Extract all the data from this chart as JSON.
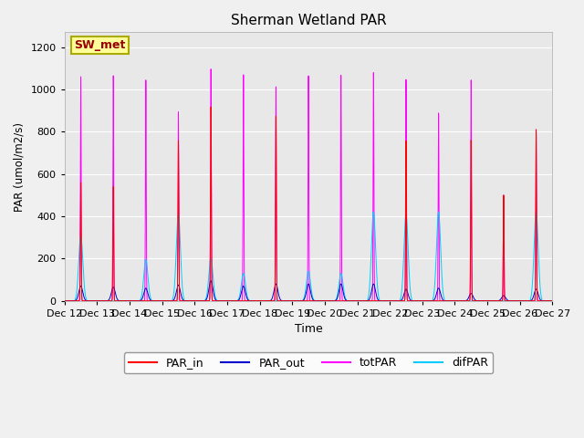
{
  "title": "Sherman Wetland PAR",
  "ylabel": "PAR (umol/m2/s)",
  "xlabel": "Time",
  "annotation": "SW_met",
  "ylim": [
    0,
    1270
  ],
  "colors": {
    "PAR_in": "#ff0000",
    "PAR_out": "#0000cc",
    "totPAR": "#ff00ff",
    "difPAR": "#00ccff"
  },
  "background_color": "#f0f0f0",
  "plot_background": "#e8e8e8",
  "grid_color": "#ffffff",
  "xtick_labels": [
    "Dec 12",
    "Dec 13",
    "Dec 14",
    "Dec 15",
    "Dec 16",
    "Dec 17",
    "Dec 18",
    "Dec 19",
    "Dec 20",
    "Dec 21",
    "Dec 22",
    "Dec 23",
    "Dec 24",
    "Dec 25",
    "Dec 26",
    "Dec 27"
  ],
  "yticks": [
    0,
    200,
    400,
    600,
    800,
    1000,
    1200
  ],
  "tot_peaks": [
    1060,
    1065,
    1045,
    895,
    1100,
    1075,
    1020,
    1075,
    1075,
    1085,
    1050,
    890,
    1045,
    500,
    810
  ],
  "par_in_peaks": [
    560,
    540,
    0,
    760,
    920,
    0,
    880,
    0,
    0,
    0,
    760,
    0,
    760,
    500,
    810
  ],
  "dif_peaks": [
    310,
    0,
    195,
    415,
    200,
    130,
    0,
    140,
    130,
    420,
    410,
    420,
    0,
    0,
    420
  ],
  "par_out_peaks": [
    70,
    65,
    60,
    75,
    95,
    70,
    80,
    80,
    80,
    80,
    55,
    60,
    35,
    25,
    55
  ]
}
